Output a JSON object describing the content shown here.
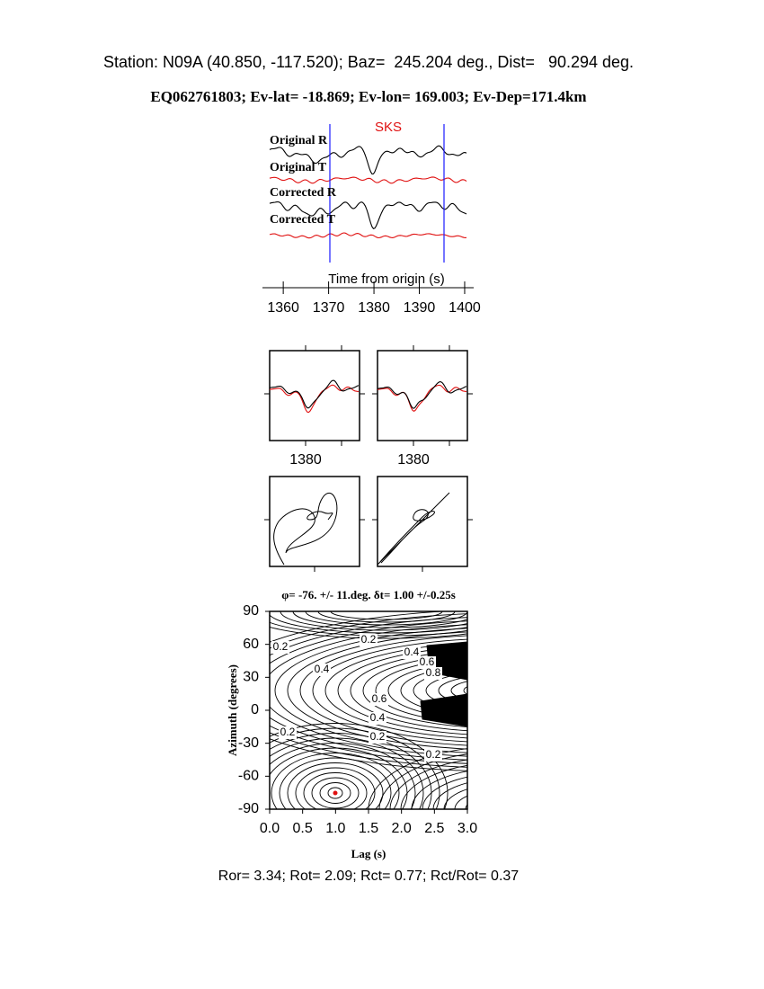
{
  "header": {
    "station": "Station: N09A (40.850, -117.520); Baz=  245.204 deg., Dist=   90.294 deg.",
    "event": "EQ062761803; Ev-lat= -18.869; Ev-lon= 169.003; Ev-Dep=171.4km"
  },
  "traces": {
    "phase": "SKS",
    "labels": [
      "Original R",
      "Original T",
      "Corrected R",
      "Corrected T"
    ],
    "xlabel": "Time from origin (s)",
    "xlim": [
      1357,
      1400.6
    ],
    "xticks": [
      1360,
      1370,
      1380,
      1390,
      1400
    ]
  },
  "particle": {
    "xtick": 1380
  },
  "contour": {
    "title": "φ= -76. +/- 11.deg. δt= 1.00 +/-0.25s",
    "xlabel": "Lag (s)",
    "ylabel": "Azimuth (degrees)",
    "xlim": [
      0,
      3
    ],
    "ylim": [
      -90,
      90
    ],
    "xticks": [
      {
        "value": 0,
        "label": "0.0"
      },
      0.5,
      {
        "value": 1,
        "label": "1.0"
      },
      1.5,
      {
        "value": 2,
        "label": "2.0"
      },
      2.5,
      {
        "value": 3,
        "label": "3.0"
      }
    ],
    "yticks": [
      -90,
      -60,
      -30,
      0,
      30,
      60,
      90
    ],
    "contour_labels": [
      "0.2",
      "0.4",
      "0.6",
      "0.8",
      "0.4",
      "0.6",
      "0.4",
      "0.2",
      "0.2",
      "0.2",
      "0.2"
    ]
  },
  "footer": "Ror= 3.34; Rot= 2.09; Rct= 0.77; Rct/Rot= 0.37"
}
